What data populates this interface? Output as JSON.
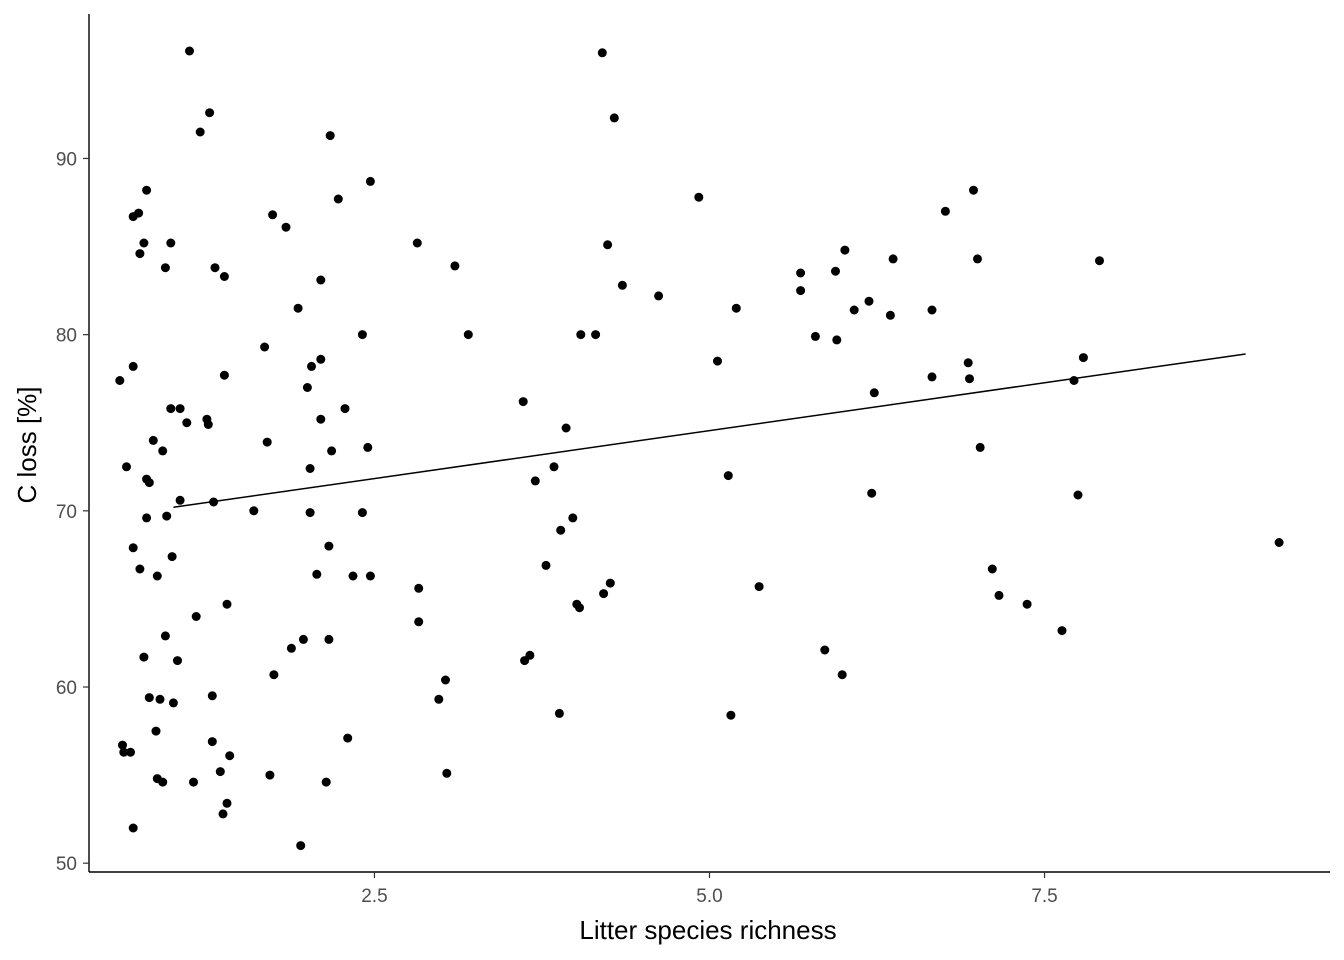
{
  "chart_data": {
    "type": "scatter",
    "title": "",
    "xlabel": "Litter species richness",
    "ylabel": "C loss [%]",
    "xlim": [
      0.37,
      9.63
    ],
    "ylim": [
      49.5,
      98.2
    ],
    "x_ticks": [
      2.5,
      5.0,
      7.5
    ],
    "x_tick_labels": [
      "2.5",
      "5.0",
      "7.5"
    ],
    "y_ticks": [
      50,
      60,
      70,
      80,
      90
    ],
    "y_tick_labels": [
      "50",
      "60",
      "70",
      "80",
      "90"
    ],
    "grid": false,
    "legend": "none",
    "point_color": "#000000",
    "trend_line": {
      "x": [
        1.0,
        9.0
      ],
      "y": [
        70.2,
        78.9
      ],
      "color": "#000000"
    },
    "points": [
      [
        0.6,
        77.4
      ],
      [
        0.65,
        72.5
      ],
      [
        0.62,
        56.7
      ],
      [
        0.63,
        56.3
      ],
      [
        0.68,
        56.3
      ],
      [
        0.7,
        52.0
      ],
      [
        0.7,
        67.9
      ],
      [
        0.7,
        78.2
      ],
      [
        0.7,
        86.7
      ],
      [
        0.74,
        86.9
      ],
      [
        0.75,
        84.6
      ],
      [
        0.75,
        66.7
      ],
      [
        0.78,
        85.2
      ],
      [
        0.8,
        88.2
      ],
      [
        0.8,
        71.8
      ],
      [
        0.8,
        69.6
      ],
      [
        0.78,
        61.7
      ],
      [
        0.82,
        71.6
      ],
      [
        0.82,
        59.4
      ],
      [
        0.85,
        74.0
      ],
      [
        0.87,
        57.5
      ],
      [
        0.88,
        66.3
      ],
      [
        0.88,
        54.8
      ],
      [
        0.9,
        59.3
      ],
      [
        0.92,
        54.6
      ],
      [
        0.92,
        73.4
      ],
      [
        0.94,
        83.8
      ],
      [
        0.94,
        62.9
      ],
      [
        0.95,
        69.7
      ],
      [
        0.98,
        75.8
      ],
      [
        0.98,
        85.2
      ],
      [
        0.99,
        67.4
      ],
      [
        1.0,
        59.1
      ],
      [
        1.03,
        61.5
      ],
      [
        1.05,
        70.6
      ],
      [
        1.05,
        75.8
      ],
      [
        1.1,
        75.0
      ],
      [
        1.12,
        96.1
      ],
      [
        1.15,
        54.6
      ],
      [
        1.17,
        64.0
      ],
      [
        1.2,
        91.5
      ],
      [
        1.25,
        75.2
      ],
      [
        1.26,
        74.9
      ],
      [
        1.27,
        92.6
      ],
      [
        1.29,
        56.9
      ],
      [
        1.29,
        59.5
      ],
      [
        1.3,
        70.5
      ],
      [
        1.31,
        83.8
      ],
      [
        1.35,
        55.2
      ],
      [
        1.37,
        52.8
      ],
      [
        1.38,
        77.7
      ],
      [
        1.38,
        83.3
      ],
      [
        1.4,
        53.4
      ],
      [
        1.4,
        64.7
      ],
      [
        1.42,
        56.1
      ],
      [
        1.6,
        70.0
      ],
      [
        1.68,
        79.3
      ],
      [
        1.7,
        73.9
      ],
      [
        1.72,
        55.0
      ],
      [
        1.74,
        86.8
      ],
      [
        1.75,
        60.7
      ],
      [
        1.84,
        86.1
      ],
      [
        1.88,
        62.2
      ],
      [
        1.93,
        81.5
      ],
      [
        1.95,
        51.0
      ],
      [
        1.97,
        62.7
      ],
      [
        2.0,
        77.0
      ],
      [
        2.02,
        72.4
      ],
      [
        2.02,
        69.9
      ],
      [
        2.03,
        78.2
      ],
      [
        2.07,
        66.4
      ],
      [
        2.1,
        78.6
      ],
      [
        2.1,
        75.2
      ],
      [
        2.1,
        83.1
      ],
      [
        2.14,
        54.6
      ],
      [
        2.16,
        68.0
      ],
      [
        2.16,
        62.7
      ],
      [
        2.17,
        91.3
      ],
      [
        2.18,
        73.4
      ],
      [
        2.23,
        87.7
      ],
      [
        2.28,
        75.8
      ],
      [
        2.3,
        57.1
      ],
      [
        2.34,
        66.3
      ],
      [
        2.41,
        80.0
      ],
      [
        2.41,
        69.9
      ],
      [
        2.45,
        73.6
      ],
      [
        2.47,
        88.7
      ],
      [
        2.47,
        66.3
      ],
      [
        2.82,
        85.2
      ],
      [
        2.83,
        65.6
      ],
      [
        2.83,
        63.7
      ],
      [
        2.98,
        59.3
      ],
      [
        3.03,
        60.4
      ],
      [
        3.04,
        55.1
      ],
      [
        3.1,
        83.9
      ],
      [
        3.2,
        80.0
      ],
      [
        3.61,
        76.2
      ],
      [
        3.62,
        61.5
      ],
      [
        3.66,
        61.8
      ],
      [
        3.7,
        71.7
      ],
      [
        3.78,
        66.9
      ],
      [
        3.84,
        72.5
      ],
      [
        3.88,
        58.5
      ],
      [
        3.89,
        68.9
      ],
      [
        3.93,
        74.7
      ],
      [
        3.98,
        69.6
      ],
      [
        4.01,
        64.7
      ],
      [
        4.03,
        64.5
      ],
      [
        4.04,
        80.0
      ],
      [
        4.15,
        80.0
      ],
      [
        4.2,
        96.0
      ],
      [
        4.21,
        65.3
      ],
      [
        4.24,
        85.1
      ],
      [
        4.26,
        65.9
      ],
      [
        4.29,
        92.3
      ],
      [
        4.35,
        82.8
      ],
      [
        4.62,
        82.2
      ],
      [
        4.92,
        87.8
      ],
      [
        5.06,
        78.5
      ],
      [
        5.14,
        72.0
      ],
      [
        5.16,
        58.4
      ],
      [
        5.2,
        81.5
      ],
      [
        5.37,
        65.7
      ],
      [
        5.68,
        83.5
      ],
      [
        5.68,
        82.5
      ],
      [
        5.79,
        79.9
      ],
      [
        5.86,
        62.1
      ],
      [
        5.94,
        83.6
      ],
      [
        5.95,
        79.7
      ],
      [
        5.99,
        60.7
      ],
      [
        6.01,
        84.8
      ],
      [
        6.08,
        81.4
      ],
      [
        6.19,
        81.9
      ],
      [
        6.21,
        71.0
      ],
      [
        6.23,
        76.7
      ],
      [
        6.35,
        81.1
      ],
      [
        6.37,
        84.3
      ],
      [
        6.66,
        77.6
      ],
      [
        6.66,
        81.4
      ],
      [
        6.76,
        87.0
      ],
      [
        6.93,
        78.4
      ],
      [
        6.94,
        77.5
      ],
      [
        6.97,
        88.2
      ],
      [
        7.0,
        84.3
      ],
      [
        7.02,
        73.6
      ],
      [
        7.11,
        66.7
      ],
      [
        7.16,
        65.2
      ],
      [
        7.37,
        64.7
      ],
      [
        7.63,
        63.2
      ],
      [
        7.72,
        77.4
      ],
      [
        7.75,
        70.9
      ],
      [
        7.79,
        78.7
      ],
      [
        7.91,
        84.2
      ],
      [
        9.25,
        68.2
      ]
    ]
  }
}
